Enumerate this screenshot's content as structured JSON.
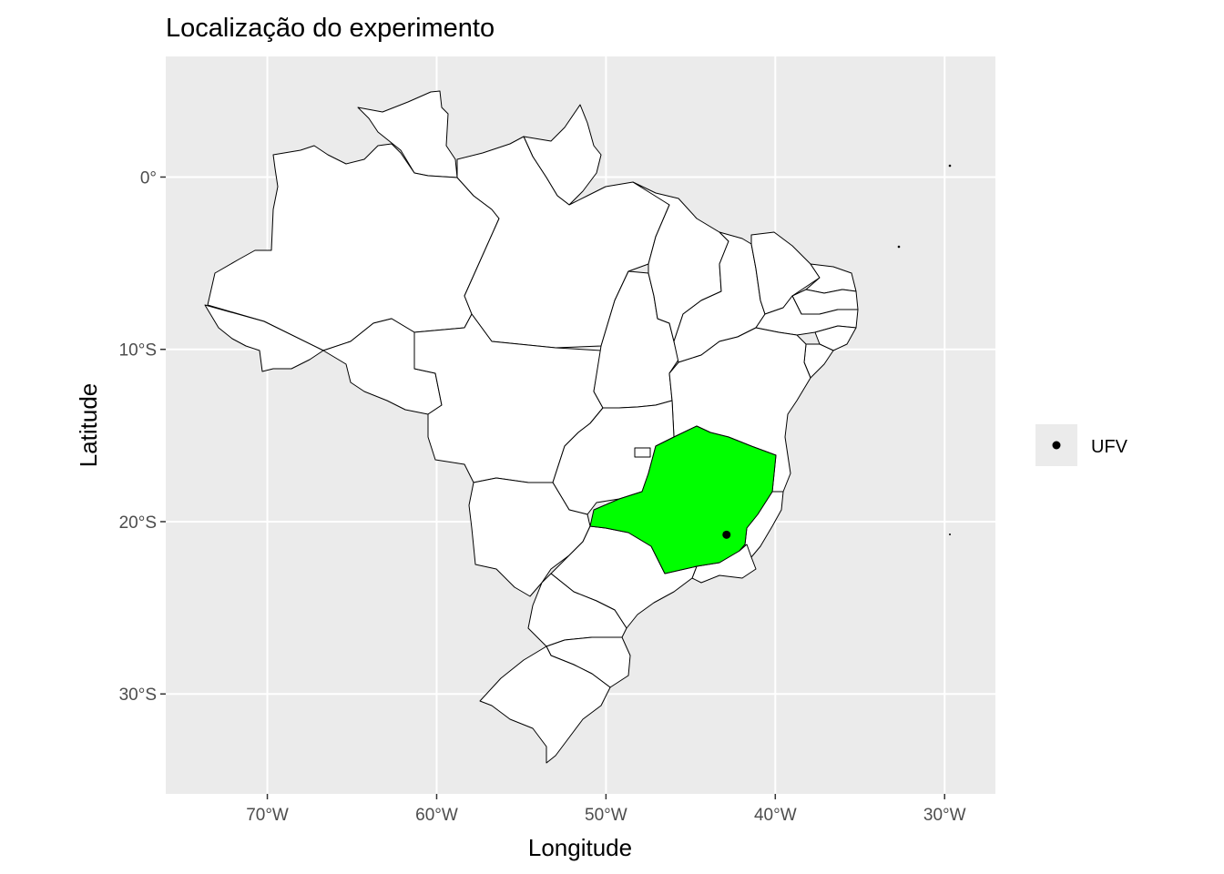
{
  "title": "Localização do experimento",
  "xlabel": "Longitude",
  "ylabel": "Latitude",
  "x_ticks": [
    {
      "value": -70,
      "label": "70°W"
    },
    {
      "value": -60,
      "label": "60°W"
    },
    {
      "value": -50,
      "label": "50°W"
    },
    {
      "value": -40,
      "label": "40°W"
    },
    {
      "value": -30,
      "label": "30°W"
    }
  ],
  "y_ticks": [
    {
      "value": 0,
      "label": "0°"
    },
    {
      "value": -10,
      "label": "10°S"
    },
    {
      "value": -20,
      "label": "20°S"
    },
    {
      "value": -30,
      "label": "30°S"
    }
  ],
  "colors": {
    "panel_background": "#ebebeb",
    "grid": "#ffffff",
    "state_fill": "#ffffff",
    "highlight_fill": "#00ff00",
    "border": "#000000",
    "point": "#000000"
  },
  "chart_data": {
    "type": "scatter",
    "xlim": [
      -76,
      -27
    ],
    "ylim": [
      -35.8,
      7
    ],
    "grid": true,
    "legend_position": "right",
    "highlighted_region": "Minas Gerais",
    "series": [
      {
        "name": "UFV",
        "points": [
          {
            "x": -42.88,
            "y": -20.76
          }
        ]
      }
    ]
  },
  "legend": {
    "items": [
      {
        "label": "UFV",
        "symbol": "point"
      }
    ]
  }
}
